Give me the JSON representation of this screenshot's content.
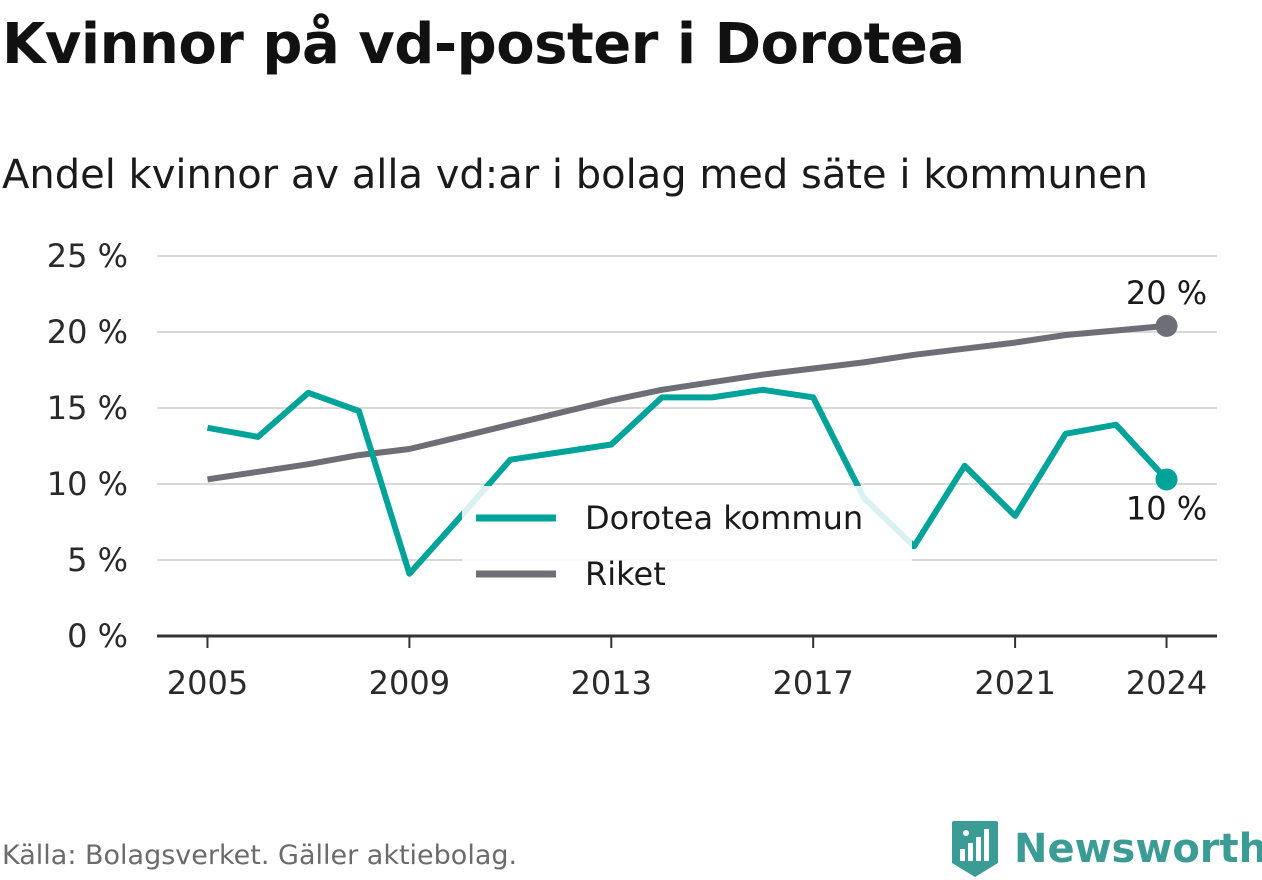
{
  "title": "Kvinnor på vd-poster i Dorotea",
  "subtitle": "Andel kvinnor av alla vd:ar i bolag med säte i kommunen",
  "source": "Källa: Bolagsverket. Gäller aktiebolag.",
  "brand": "Newsworthy",
  "colors": {
    "dorotea": "#00a39a",
    "riket": "#6e6e76",
    "grid": "#d9d9d9",
    "axis": "#333333",
    "brand": "#3b9c96"
  },
  "icons": {
    "logo": "bar-chart-badge-icon"
  },
  "chart_data": {
    "type": "line",
    "x": [
      2005,
      2006,
      2007,
      2008,
      2009,
      2010,
      2011,
      2012,
      2013,
      2014,
      2015,
      2016,
      2017,
      2018,
      2019,
      2020,
      2021,
      2022,
      2023,
      2024
    ],
    "xticks": [
      2005,
      2009,
      2013,
      2017,
      2021,
      2024
    ],
    "xtick_labels": [
      "2005",
      "2009",
      "2013",
      "2017",
      "2021",
      "2024"
    ],
    "xlim": [
      2004.0,
      2025.0
    ],
    "ylim": [
      0,
      25
    ],
    "yticks": [
      0,
      5,
      10,
      15,
      20,
      25
    ],
    "ytick_labels": [
      "0 %",
      "5 %",
      "10 %",
      "15 %",
      "20 %",
      "25 %"
    ],
    "grid": true,
    "legend_position": "center",
    "series": [
      {
        "name": "Dorotea kommun",
        "color": "#00a39a",
        "values": [
          13.7,
          13.1,
          16.0,
          14.8,
          4.1,
          7.8,
          11.6,
          12.1,
          12.6,
          15.7,
          15.7,
          16.2,
          15.7,
          9.1,
          5.9,
          11.2,
          7.9,
          13.3,
          13.9,
          10.3
        ],
        "end_label": "10 %"
      },
      {
        "name": "Riket",
        "color": "#6e6e76",
        "values": [
          10.3,
          10.8,
          11.3,
          11.9,
          12.3,
          13.1,
          13.9,
          14.7,
          15.5,
          16.2,
          16.7,
          17.2,
          17.6,
          18.0,
          18.5,
          18.9,
          19.3,
          19.8,
          20.1,
          20.4
        ],
        "end_label": "20 %"
      }
    ]
  }
}
